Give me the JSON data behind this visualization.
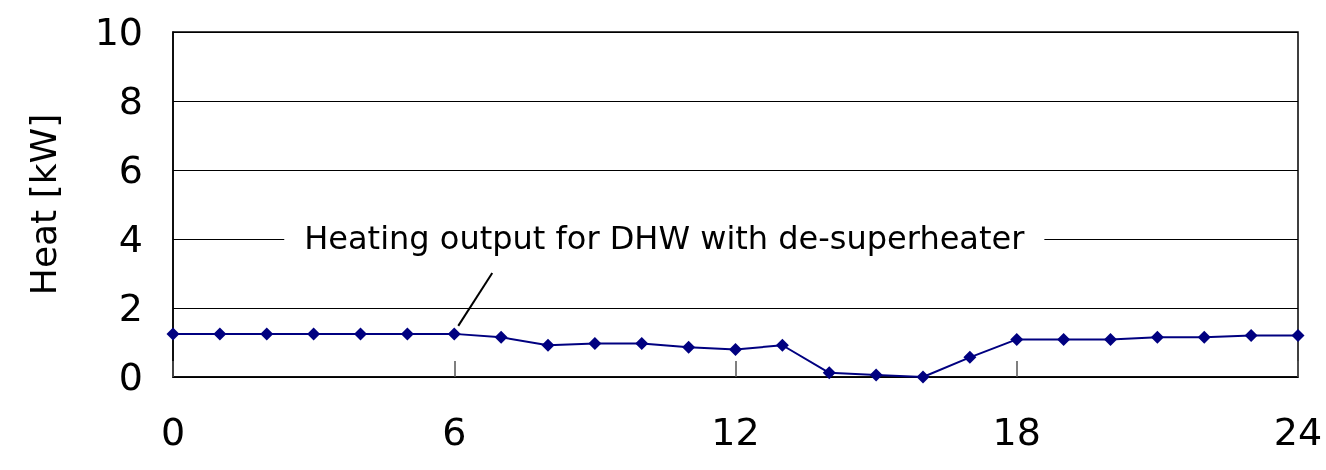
{
  "chart_data": {
    "type": "line",
    "ylabel": "Heat [kW]",
    "x": [
      0,
      1,
      2,
      3,
      4,
      5,
      6,
      7,
      8,
      9,
      10,
      11,
      12,
      13,
      14,
      15,
      16,
      17,
      18,
      19,
      20,
      21,
      22,
      23,
      24
    ],
    "series": [
      {
        "color": "#000080",
        "values": [
          1.25,
          1.25,
          1.25,
          1.25,
          1.25,
          1.25,
          1.25,
          1.15,
          0.92,
          0.97,
          0.97,
          0.86,
          0.8,
          0.92,
          0.12,
          0.06,
          0,
          0.57,
          1.09,
          1.09,
          1.09,
          1.15,
          1.15,
          1.2,
          1.2
        ]
      }
    ],
    "xlim": [
      0,
      24
    ],
    "xticks": [
      0,
      6,
      12,
      18,
      24
    ],
    "ylim": [
      0,
      10
    ],
    "yticks": [
      0,
      2,
      4,
      6,
      8,
      10
    ],
    "grid": "y",
    "marker": "diamond",
    "line_style": "solid",
    "annotations": [
      {
        "text": "Heating output for DHW with de-superheater",
        "x": 6,
        "y": 1.25
      }
    ]
  }
}
